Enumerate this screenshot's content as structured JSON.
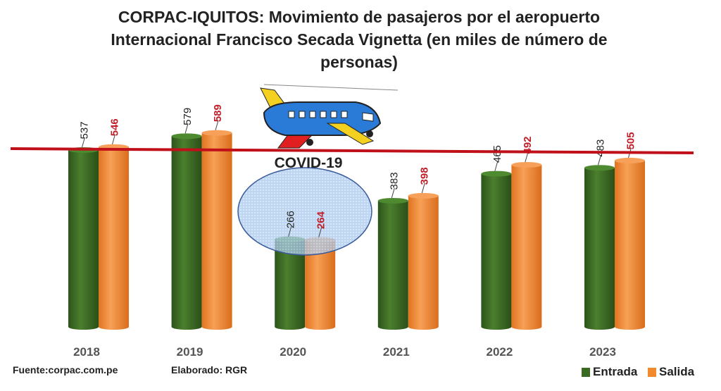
{
  "chart_data": {
    "type": "bar",
    "title": "CORPAC-IQUITOS: Movimiento de pasajeros por el aeropuerto Internacional Francisco Secada Vignetta (en miles de número de personas)",
    "categories": [
      "2018",
      "2019",
      "2020",
      "2021",
      "2022",
      "2023"
    ],
    "series": [
      {
        "name": "Entrada",
        "values": [
          537,
          579,
          266,
          383,
          465,
          483
        ],
        "color": "#3a6b22",
        "label_color": "#222222"
      },
      {
        "name": "Salida",
        "values": [
          546,
          589,
          264,
          398,
          492,
          505
        ],
        "color": "#f08a2c",
        "label_color": "#c0202a"
      }
    ],
    "reference_line_color": "#c0101a",
    "annotation": "COVID-19",
    "xlabel": "",
    "ylabel": "",
    "ylim": [
      0,
      600
    ],
    "grid": false,
    "legend_position": "bottom-right"
  },
  "footer": {
    "source": "Fuente:corpac.com.pe",
    "author": "Elaborado:  RGR"
  }
}
